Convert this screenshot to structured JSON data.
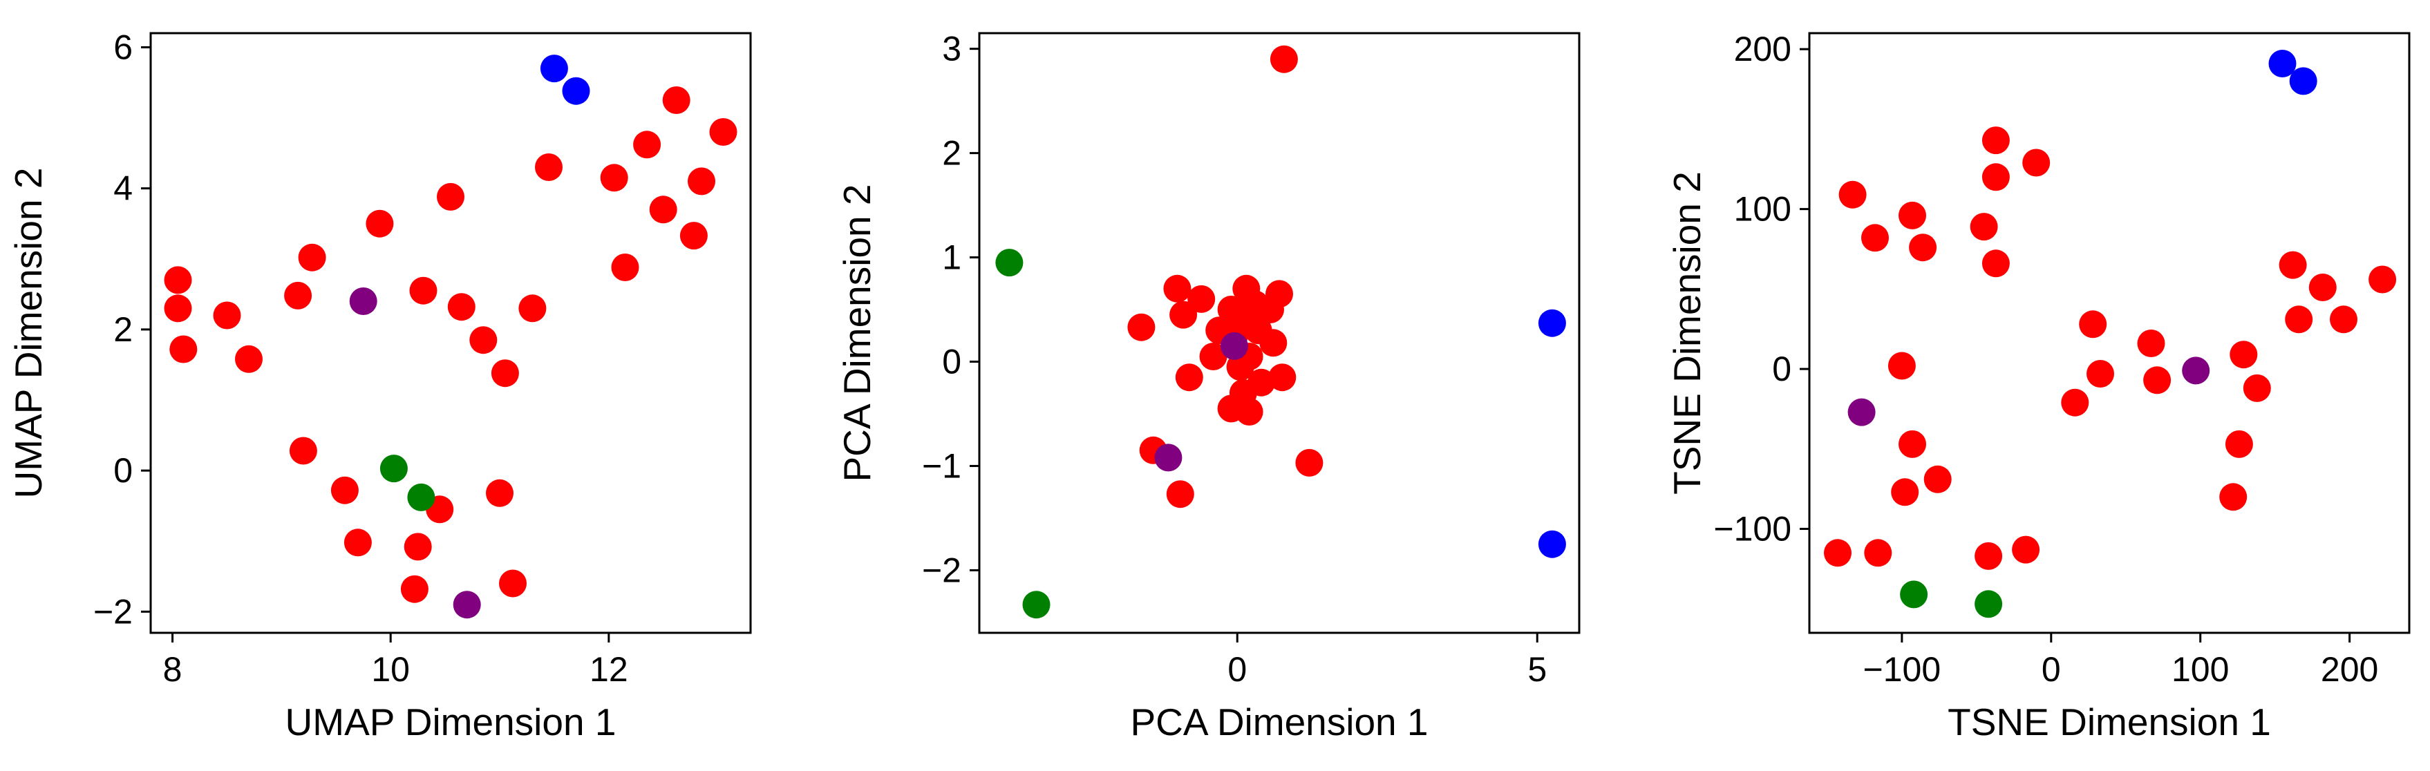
{
  "chart_data": [
    {
      "type": "scatter",
      "xlabel": "UMAP Dimension 1",
      "ylabel": "UMAP Dimension 2",
      "xlim": [
        7.8,
        13.3
      ],
      "ylim": [
        -2.3,
        6.2
      ],
      "xticks": [
        8,
        10,
        12
      ],
      "yticks": [
        -2,
        0,
        2,
        4,
        6
      ],
      "x_tick_labels": [
        "8",
        "10",
        "12"
      ],
      "y_tick_labels": [
        "−2",
        "0",
        "2",
        "4",
        "6"
      ],
      "series": [
        {
          "color": "#ff0000",
          "points": [
            [
              8.05,
              2.7
            ],
            [
              8.05,
              2.3
            ],
            [
              8.1,
              1.72
            ],
            [
              8.5,
              2.2
            ],
            [
              8.7,
              1.58
            ],
            [
              9.15,
              2.48
            ],
            [
              9.28,
              3.02
            ],
            [
              9.9,
              3.5
            ],
            [
              10.3,
              2.55
            ],
            [
              10.55,
              3.88
            ],
            [
              10.65,
              2.32
            ],
            [
              10.85,
              1.85
            ],
            [
              11.05,
              1.38
            ],
            [
              11.3,
              2.3
            ],
            [
              11.45,
              4.3
            ],
            [
              12.05,
              4.15
            ],
            [
              12.15,
              2.88
            ],
            [
              12.35,
              4.62
            ],
            [
              12.5,
              3.7
            ],
            [
              12.62,
              5.25
            ],
            [
              12.78,
              3.33
            ],
            [
              12.85,
              4.1
            ],
            [
              13.05,
              4.8
            ],
            [
              9.2,
              0.28
            ],
            [
              9.58,
              -0.28
            ],
            [
              9.7,
              -1.02
            ],
            [
              10.25,
              -1.08
            ],
            [
              10.45,
              -0.55
            ],
            [
              11.0,
              -0.32
            ],
            [
              11.12,
              -1.6
            ],
            [
              10.22,
              -1.68
            ]
          ]
        },
        {
          "color": "#0000ff",
          "points": [
            [
              11.5,
              5.7
            ],
            [
              11.7,
              5.38
            ]
          ]
        },
        {
          "color": "#008000",
          "points": [
            [
              10.03,
              0.03
            ],
            [
              10.28,
              -0.38
            ]
          ]
        },
        {
          "color": "#800080",
          "points": [
            [
              9.75,
              2.4
            ],
            [
              10.7,
              -1.9
            ]
          ]
        }
      ]
    },
    {
      "type": "scatter",
      "xlabel": "PCA Dimension 1",
      "ylabel": "PCA Dimension 2",
      "xlim": [
        -4.3,
        5.7
      ],
      "ylim": [
        -2.6,
        3.15
      ],
      "xticks": [
        0,
        5
      ],
      "yticks": [
        -2,
        -1,
        0,
        1,
        2,
        3
      ],
      "x_tick_labels": [
        "0",
        "5"
      ],
      "y_tick_labels": [
        "−2",
        "−1",
        "0",
        "1",
        "2",
        "3"
      ],
      "series": [
        {
          "color": "#ff0000",
          "points": [
            [
              0.78,
              2.9
            ],
            [
              -1.6,
              0.33
            ],
            [
              -1.0,
              0.7
            ],
            [
              -0.6,
              0.6
            ],
            [
              -0.9,
              0.45
            ],
            [
              -0.8,
              -0.15
            ],
            [
              -0.4,
              0.05
            ],
            [
              -0.3,
              0.3
            ],
            [
              -0.1,
              0.5
            ],
            [
              0.15,
              0.7
            ],
            [
              0.3,
              0.55
            ],
            [
              0.55,
              0.5
            ],
            [
              0.7,
              0.65
            ],
            [
              0.1,
              0.35
            ],
            [
              -0.05,
              0.25
            ],
            [
              0.35,
              0.3
            ],
            [
              0.6,
              0.18
            ],
            [
              0.2,
              0.05
            ],
            [
              0.05,
              -0.05
            ],
            [
              0.4,
              -0.2
            ],
            [
              0.75,
              -0.15
            ],
            [
              0.1,
              -0.3
            ],
            [
              -0.1,
              -0.45
            ],
            [
              0.2,
              -0.48
            ],
            [
              -1.4,
              -0.85
            ],
            [
              -0.95,
              -1.27
            ],
            [
              1.2,
              -0.97
            ]
          ]
        },
        {
          "color": "#0000ff",
          "points": [
            [
              5.25,
              0.37
            ],
            [
              5.25,
              -1.75
            ]
          ]
        },
        {
          "color": "#008000",
          "points": [
            [
              -3.8,
              0.95
            ],
            [
              -3.35,
              -2.33
            ]
          ]
        },
        {
          "color": "#800080",
          "points": [
            [
              -0.05,
              0.15
            ],
            [
              -1.15,
              -0.92
            ]
          ]
        }
      ]
    },
    {
      "type": "scatter",
      "xlabel": "TSNE Dimension 1",
      "ylabel": "TSNE Dimension 2",
      "xlim": [
        -162,
        240
      ],
      "ylim": [
        -165,
        210
      ],
      "xticks": [
        -100,
        0,
        100,
        200
      ],
      "yticks": [
        -100,
        0,
        100,
        200
      ],
      "x_tick_labels": [
        "−100",
        "0",
        "100",
        "200"
      ],
      "y_tick_labels": [
        "−100",
        "0",
        "100",
        "200"
      ],
      "series": [
        {
          "color": "#ff0000",
          "points": [
            [
              -133,
              109
            ],
            [
              -118,
              82
            ],
            [
              -93,
              96
            ],
            [
              -86,
              76
            ],
            [
              -45,
              89
            ],
            [
              -37,
              143
            ],
            [
              -37,
              120
            ],
            [
              -37,
              66
            ],
            [
              -10,
              129
            ],
            [
              -100,
              2
            ],
            [
              -93,
              -47
            ],
            [
              -98,
              -77
            ],
            [
              -76,
              -69
            ],
            [
              -143,
              -115
            ],
            [
              -116,
              -115
            ],
            [
              -42,
              -117
            ],
            [
              -17,
              -113
            ],
            [
              16,
              -21
            ],
            [
              28,
              28
            ],
            [
              33,
              -3
            ],
            [
              67,
              16
            ],
            [
              71,
              -7
            ],
            [
              122,
              -80
            ],
            [
              126,
              -47
            ],
            [
              129,
              9
            ],
            [
              138,
              -12
            ],
            [
              162,
              65
            ],
            [
              166,
              31
            ],
            [
              182,
              51
            ],
            [
              196,
              31
            ],
            [
              222,
              56
            ]
          ]
        },
        {
          "color": "#0000ff",
          "points": [
            [
              155,
              191
            ],
            [
              169,
              180
            ]
          ]
        },
        {
          "color": "#008000",
          "points": [
            [
              -92,
              -141
            ],
            [
              -42,
              -147
            ]
          ]
        },
        {
          "color": "#800080",
          "points": [
            [
              -127,
              -27
            ],
            [
              97,
              -1
            ]
          ]
        }
      ]
    }
  ]
}
